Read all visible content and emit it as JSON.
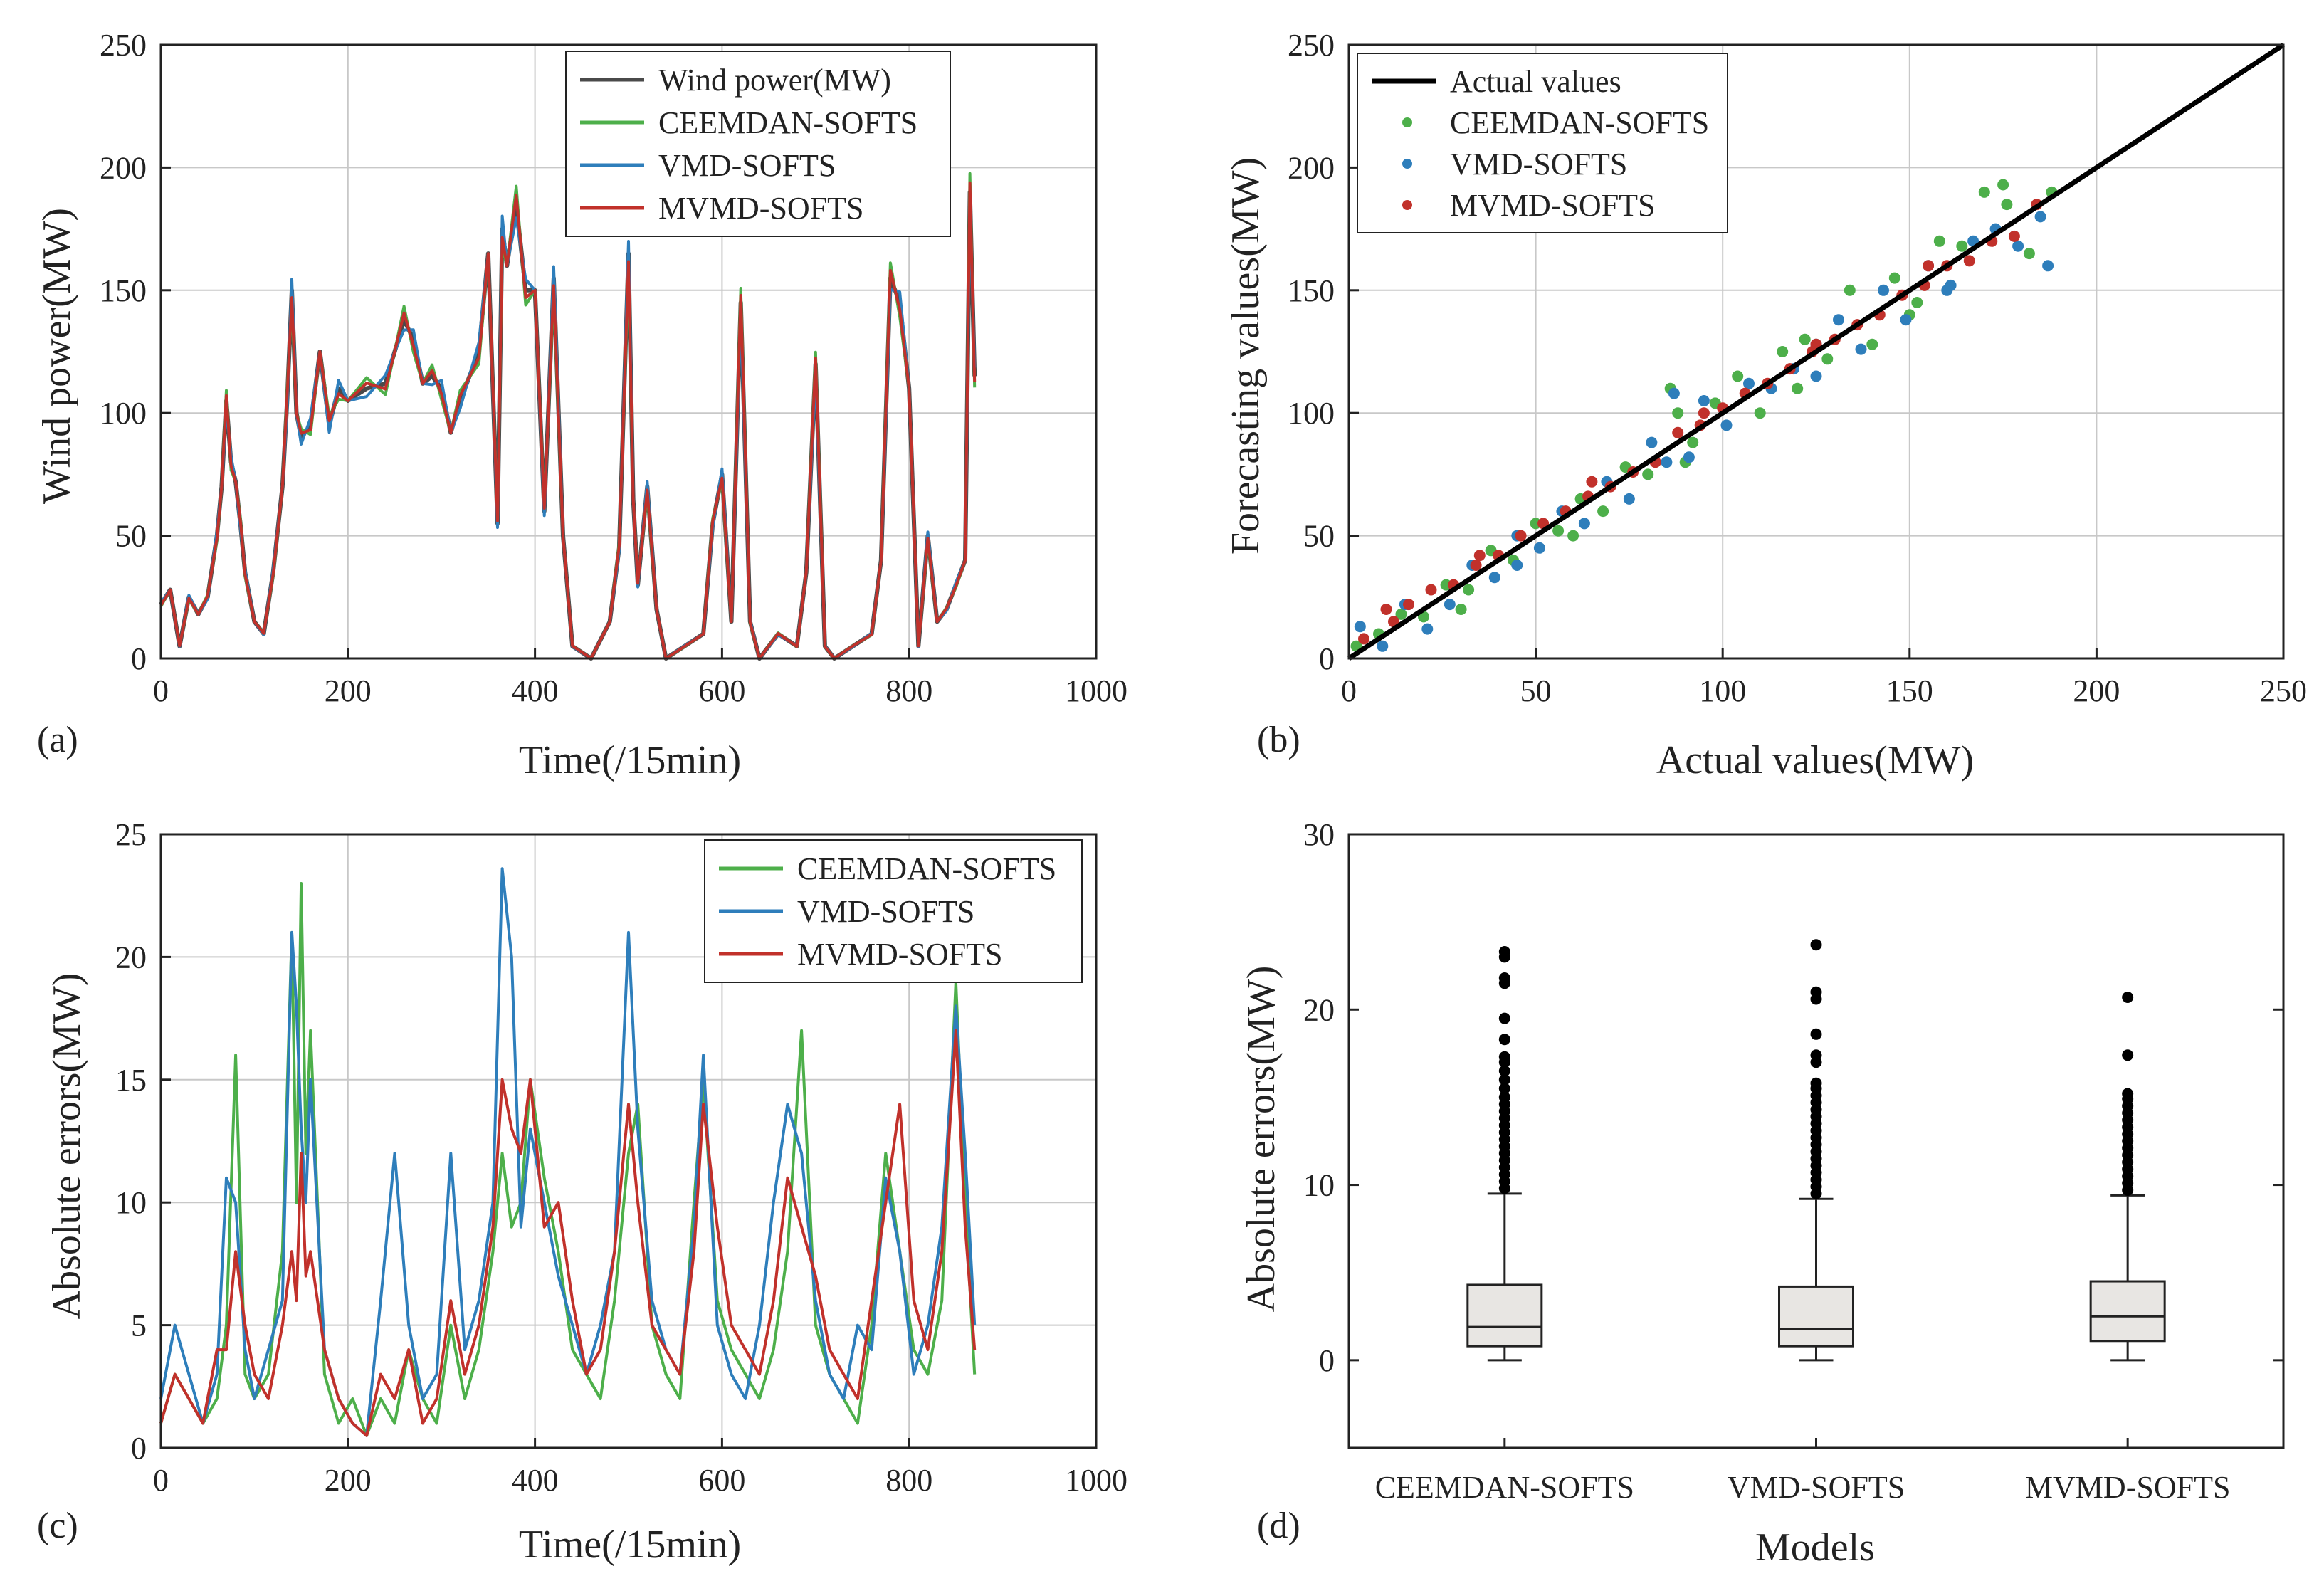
{
  "colors": {
    "wind_power": "#4a4a4a",
    "ceemdan": "#4daf4a",
    "vmd": "#2e7ebb",
    "mvmd": "#c1312b",
    "actual_line": "#000000",
    "box_fill": "#e8e6e3",
    "outlier": "#000000"
  },
  "chart_data": [
    {
      "type": "line",
      "panel_label": "(a)",
      "xlabel": "Time(/15min)",
      "ylabel": "Wind power(MW)",
      "xlim": [
        0,
        1000
      ],
      "ylim": [
        0,
        250
      ],
      "xticks": [
        0,
        200,
        400,
        600,
        800,
        1000
      ],
      "yticks": [
        0,
        50,
        100,
        150,
        200,
        250
      ],
      "grid": true,
      "legend": "top-center",
      "series": [
        {
          "name": "Wind power(MW)",
          "key": "wind_power"
        },
        {
          "name": "CEEMDAN-SOFTS",
          "key": "ceemdan"
        },
        {
          "name": "VMD-SOFTS",
          "key": "vmd"
        },
        {
          "name": "MVMD-SOFTS",
          "key": "mvmd"
        }
      ],
      "x": [
        0,
        10,
        20,
        30,
        40,
        50,
        60,
        65,
        70,
        75,
        80,
        85,
        90,
        100,
        110,
        120,
        130,
        135,
        140,
        145,
        150,
        160,
        170,
        180,
        190,
        200,
        220,
        240,
        250,
        260,
        270,
        280,
        290,
        300,
        310,
        320,
        340,
        350,
        360,
        365,
        370,
        380,
        390,
        400,
        410,
        420,
        430,
        440,
        460,
        480,
        490,
        500,
        505,
        510,
        520,
        530,
        540,
        560,
        580,
        590,
        600,
        610,
        620,
        630,
        640,
        660,
        680,
        690,
        700,
        710,
        720,
        740,
        760,
        770,
        780,
        790,
        800,
        810,
        820,
        830,
        840,
        850,
        860,
        865,
        870
      ],
      "values": [
        22,
        28,
        5,
        25,
        18,
        25,
        50,
        70,
        105,
        80,
        72,
        55,
        35,
        15,
        10,
        35,
        70,
        105,
        150,
        100,
        90,
        95,
        125,
        95,
        110,
        105,
        110,
        112,
        125,
        138,
        130,
        112,
        115,
        110,
        92,
        105,
        125,
        165,
        55,
        175,
        160,
        185,
        150,
        150,
        60,
        155,
        50,
        5,
        0,
        15,
        45,
        165,
        65,
        30,
        70,
        20,
        0,
        5,
        10,
        55,
        75,
        15,
        145,
        15,
        0,
        10,
        5,
        35,
        120,
        5,
        0,
        5,
        10,
        40,
        155,
        145,
        110,
        5,
        50,
        15,
        20,
        30,
        40,
        190,
        115
      ]
    },
    {
      "type": "scatter",
      "panel_label": "(b)",
      "xlabel": "Actual values(MW)",
      "ylabel": "Forecasting values(MW)",
      "xlim": [
        0,
        250
      ],
      "ylim": [
        0,
        250
      ],
      "xticks": [
        0,
        50,
        100,
        150,
        200,
        250
      ],
      "yticks": [
        0,
        50,
        100,
        150,
        200,
        250
      ],
      "grid": true,
      "legend": "top-left",
      "reference_line": {
        "name": "Actual values",
        "x": [
          0,
          250
        ],
        "y": [
          0,
          250
        ]
      },
      "series": [
        {
          "name": "CEEMDAN-SOFTS",
          "key": "ceemdan",
          "x": [
            2,
            8,
            14,
            20,
            26,
            32,
            38,
            44,
            50,
            56,
            62,
            68,
            74,
            80,
            86,
            88,
            92,
            98,
            104,
            110,
            116,
            122,
            128,
            134,
            140,
            146,
            152,
            158,
            164,
            170,
            176,
            182,
            188,
            30,
            60,
            90,
            120,
            150,
            175
          ],
          "y": [
            5,
            10,
            18,
            17,
            30,
            28,
            44,
            40,
            55,
            52,
            65,
            60,
            78,
            75,
            110,
            100,
            88,
            104,
            115,
            100,
            125,
            130,
            122,
            150,
            128,
            155,
            145,
            170,
            168,
            190,
            185,
            165,
            190,
            20,
            50,
            80,
            110,
            140,
            193
          ]
        },
        {
          "name": "VMD-SOFTS",
          "key": "vmd",
          "x": [
            3,
            9,
            15,
            21,
            27,
            33,
            39,
            45,
            51,
            57,
            63,
            69,
            75,
            81,
            87,
            91,
            95,
            101,
            107,
            113,
            119,
            125,
            131,
            137,
            143,
            149,
            155,
            161,
            167,
            173,
            179,
            185,
            187,
            45,
            85,
            125,
            160
          ],
          "y": [
            13,
            5,
            22,
            12,
            22,
            38,
            33,
            50,
            45,
            60,
            55,
            72,
            65,
            88,
            108,
            82,
            105,
            95,
            112,
            110,
            118,
            128,
            138,
            126,
            150,
            138,
            160,
            152,
            170,
            175,
            168,
            180,
            160,
            38,
            80,
            115,
            150
          ]
        },
        {
          "name": "MVMD-SOFTS",
          "key": "mvmd",
          "x": [
            4,
            10,
            16,
            22,
            28,
            34,
            40,
            46,
            52,
            58,
            64,
            70,
            76,
            82,
            88,
            94,
            100,
            106,
            112,
            118,
            124,
            130,
            136,
            142,
            148,
            154,
            160,
            166,
            172,
            178,
            184,
            12,
            35,
            65,
            95,
            125,
            155
          ],
          "y": [
            8,
            20,
            22,
            28,
            30,
            38,
            42,
            50,
            55,
            60,
            66,
            70,
            76,
            80,
            92,
            95,
            102,
            108,
            112,
            118,
            125,
            130,
            136,
            140,
            148,
            152,
            160,
            162,
            170,
            172,
            185,
            15,
            42,
            72,
            100,
            128,
            160
          ]
        }
      ]
    },
    {
      "type": "line",
      "panel_label": "(c)",
      "xlabel": "Time(/15min)",
      "ylabel": "Absolute errors(MW)",
      "xlim": [
        0,
        1000
      ],
      "ylim": [
        0,
        25
      ],
      "xticks": [
        0,
        200,
        400,
        600,
        800,
        1000
      ],
      "yticks": [
        0,
        5,
        10,
        15,
        20,
        25
      ],
      "grid": true,
      "legend": "top-right",
      "x": [
        0,
        15,
        30,
        45,
        60,
        70,
        80,
        90,
        100,
        115,
        130,
        140,
        145,
        150,
        155,
        160,
        175,
        190,
        205,
        220,
        235,
        250,
        265,
        280,
        295,
        310,
        325,
        340,
        355,
        365,
        375,
        385,
        395,
        410,
        425,
        440,
        455,
        470,
        485,
        500,
        510,
        525,
        540,
        555,
        570,
        580,
        595,
        610,
        625,
        640,
        655,
        670,
        685,
        700,
        715,
        730,
        745,
        760,
        775,
        790,
        805,
        820,
        835,
        850,
        860,
        870
      ],
      "series": [
        {
          "name": "CEEMDAN-SOFTS",
          "key": "ceemdan",
          "values": [
            1,
            3,
            2,
            1,
            2,
            5,
            16,
            3,
            2,
            3,
            8,
            21,
            10,
            23,
            12,
            17,
            3,
            1,
            2,
            0.5,
            2,
            1,
            4,
            2,
            1,
            5,
            2,
            4,
            8,
            12,
            9,
            10,
            15,
            11,
            8,
            4,
            3,
            2,
            6,
            12,
            14,
            5,
            3,
            2,
            10,
            15,
            6,
            4,
            3,
            2,
            4,
            8,
            17,
            5,
            3,
            2,
            1,
            5,
            12,
            8,
            4,
            3,
            6,
            19,
            10,
            3
          ]
        },
        {
          "name": "VMD-SOFTS",
          "key": "vmd",
          "values": [
            2,
            5,
            3,
            1,
            3,
            11,
            10,
            4,
            2,
            4,
            6,
            21,
            18,
            13,
            10,
            15,
            4,
            2,
            1,
            0.5,
            6,
            12,
            5,
            2,
            3,
            12,
            4,
            6,
            10,
            23.6,
            20,
            9,
            13,
            10,
            7,
            5,
            3,
            5,
            8,
            21,
            13,
            6,
            4,
            3,
            9,
            16,
            5,
            3,
            2,
            5,
            10,
            14,
            12,
            6,
            3,
            2,
            5,
            4,
            11,
            8,
            3,
            5,
            9,
            18,
            12,
            5
          ]
        },
        {
          "name": "MVMD-SOFTS",
          "key": "mvmd",
          "values": [
            1,
            3,
            2,
            1,
            4,
            4,
            8,
            5,
            3,
            2,
            5,
            8,
            6,
            12,
            7,
            8,
            4,
            2,
            1,
            0.5,
            3,
            2,
            4,
            1,
            2,
            6,
            3,
            5,
            9,
            15,
            13,
            12,
            15,
            9,
            10,
            6,
            3,
            4,
            8,
            14,
            10,
            5,
            4,
            3,
            8,
            14,
            9,
            5,
            4,
            3,
            6,
            11,
            9,
            7,
            4,
            3,
            2,
            6,
            10,
            14,
            6,
            4,
            8,
            17,
            9,
            4
          ]
        }
      ]
    },
    {
      "type": "box",
      "panel_label": "(d)",
      "xlabel": "Models",
      "ylabel": "Absolute errors(MW)",
      "ylim": [
        -5,
        30
      ],
      "yticks": [
        0,
        10,
        20,
        30
      ],
      "grid": false,
      "categories": [
        "CEEMDAN-SOFTS",
        "VMD-SOFTS",
        "MVMD-SOFTS"
      ],
      "boxes": [
        {
          "category": "CEEMDAN-SOFTS",
          "min": 0,
          "q1": 0.8,
          "median": 1.9,
          "q3": 4.3,
          "whisker_high": 9.5,
          "outliers": [
            9.8,
            10.2,
            10.6,
            11.0,
            11.4,
            11.8,
            12.2,
            12.6,
            13.0,
            13.4,
            13.8,
            14.2,
            14.6,
            15.0,
            15.5,
            16.0,
            16.5,
            17.0,
            17.3,
            18.3,
            19.5,
            21.5,
            21.8,
            23.0,
            23.3
          ]
        },
        {
          "category": "VMD-SOFTS",
          "min": 0,
          "q1": 0.8,
          "median": 1.8,
          "q3": 4.2,
          "whisker_high": 9.2,
          "outliers": [
            9.5,
            9.9,
            10.3,
            10.7,
            11.1,
            11.5,
            11.9,
            12.3,
            12.7,
            13.1,
            13.5,
            13.9,
            14.3,
            14.7,
            15.1,
            15.5,
            15.8,
            17.0,
            17.4,
            18.6,
            20.6,
            21.0,
            23.7
          ]
        },
        {
          "category": "MVMD-SOFTS",
          "min": 0,
          "q1": 1.1,
          "median": 2.5,
          "q3": 4.5,
          "whisker_high": 9.4,
          "outliers": [
            9.7,
            10.1,
            10.5,
            10.9,
            11.3,
            11.7,
            12.1,
            12.5,
            12.9,
            13.3,
            13.7,
            14.1,
            14.5,
            14.9,
            15.2,
            17.4,
            20.7
          ]
        }
      ]
    }
  ]
}
